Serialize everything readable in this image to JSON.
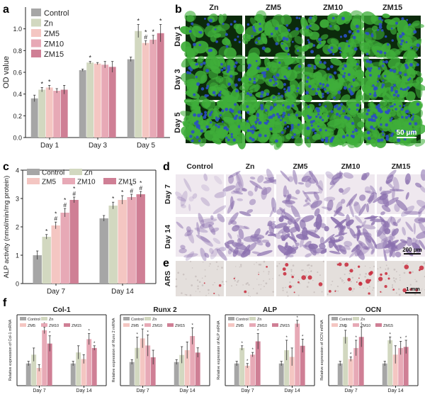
{
  "colors": {
    "Control": "#a6a6a6",
    "Zn": "#d2d8c0",
    "ZM5": "#f4c6c2",
    "ZM10": "#e7a9b6",
    "ZM15": "#cf7f95",
    "err": "#333333",
    "fluor_bg": "#0b2a0b",
    "fluor_cell": "#3fae3a",
    "nucleus": "#2a4fc4",
    "stain_bg": "#efe8ef",
    "stain_cell": "#8a6fae",
    "ars_bg": "#e4dfdc",
    "ars_spot": "#c8283a"
  },
  "panels": {
    "a": "a",
    "b": "b",
    "c": "c",
    "d": "d",
    "e": "e",
    "f": "f"
  },
  "panel_b": {
    "cols": [
      "Zn",
      "ZM5",
      "ZM10",
      "ZM15"
    ],
    "rows": [
      "Day 1",
      "Day 3",
      "Day 5"
    ],
    "scale": "50 μm"
  },
  "panel_d": {
    "cols": [
      "Control",
      "Zn",
      "ZM5",
      "ZM10",
      "ZM15"
    ],
    "rows": [
      "Day 7",
      "Day 14"
    ],
    "scale": "200 μm"
  },
  "panel_e": {
    "row": "ARS",
    "scale": "1 mm"
  },
  "chart_data": [
    {
      "id": "a",
      "type": "bar",
      "categories": [
        "Day 1",
        "Day 3",
        "Day 5"
      ],
      "ylabel": "OD value",
      "ylim": [
        0,
        1.2
      ],
      "yticks": [
        0.0,
        0.2,
        0.4,
        0.6,
        0.8,
        1.0
      ],
      "ytick_labels": [
        "0.0",
        "0.2",
        "0.4",
        "0.6",
        "0.8",
        "1.0"
      ],
      "legend": "top-left",
      "series": [
        {
          "name": "Control",
          "values": [
            0.36,
            0.62,
            0.72
          ],
          "err": [
            0.03,
            0.01,
            0.02
          ],
          "marks": [
            "",
            "",
            ""
          ]
        },
        {
          "name": "Zn",
          "values": [
            0.44,
            0.69,
            0.98
          ],
          "err": [
            0.02,
            0.01,
            0.06
          ],
          "marks": [
            "*",
            "*",
            "*"
          ]
        },
        {
          "name": "ZM5",
          "values": [
            0.46,
            0.68,
            0.87
          ],
          "err": [
            0.02,
            0.01,
            0.02
          ],
          "marks": [
            "*",
            "",
            "*\n#"
          ]
        },
        {
          "name": "ZM10",
          "values": [
            0.43,
            0.67,
            0.9
          ],
          "err": [
            0.02,
            0.03,
            0.04
          ],
          "marks": [
            "",
            "",
            "*"
          ]
        },
        {
          "name": "ZM15",
          "values": [
            0.44,
            0.65,
            0.96
          ],
          "err": [
            0.04,
            0.05,
            0.08
          ],
          "marks": [
            "",
            "",
            "*"
          ]
        }
      ]
    },
    {
      "id": "c",
      "type": "bar",
      "categories": [
        "Day 7",
        "Day 14"
      ],
      "ylabel": "ALP activity (nmol/min/mg protein)",
      "ylim": [
        0,
        4
      ],
      "yticks": [
        0,
        1,
        2,
        3,
        4
      ],
      "ytick_labels": [
        "0",
        "1",
        "2",
        "3",
        "4"
      ],
      "legend": "top",
      "series": [
        {
          "name": "Control",
          "values": [
            1.0,
            2.3
          ],
          "err": [
            0.15,
            0.1
          ],
          "marks": [
            "",
            ""
          ]
        },
        {
          "name": "Zn",
          "values": [
            1.65,
            2.75
          ],
          "err": [
            0.08,
            0.12
          ],
          "marks": [
            "*",
            "*"
          ]
        },
        {
          "name": "ZM5",
          "values": [
            2.05,
            2.95
          ],
          "err": [
            0.12,
            0.15
          ],
          "marks": [
            "*\n#",
            "*"
          ]
        },
        {
          "name": "ZM10",
          "values": [
            2.5,
            3.05
          ],
          "err": [
            0.15,
            0.1
          ],
          "marks": [
            "*\n#",
            "*\n#"
          ]
        },
        {
          "name": "ZM15",
          "values": [
            2.95,
            3.15
          ],
          "err": [
            0.1,
            0.1
          ],
          "marks": [
            "*\n#",
            "*\n#"
          ]
        }
      ]
    },
    {
      "id": "f1",
      "type": "bar",
      "title": "Col-1",
      "categories": [
        "Day 7",
        "Day 14"
      ],
      "ylabel": "Relative expression of Col-1 mRNA",
      "ylim": [
        0,
        3.2
      ],
      "series": [
        {
          "name": "Control",
          "values": [
            1.0,
            1.0
          ],
          "err": [
            0.1,
            0.1
          ],
          "marks": [
            "",
            ""
          ]
        },
        {
          "name": "Zn",
          "values": [
            1.4,
            1.5
          ],
          "err": [
            0.3,
            0.3
          ],
          "marks": [
            "",
            ""
          ]
        },
        {
          "name": "ZM5",
          "values": [
            0.8,
            1.2
          ],
          "err": [
            0.15,
            0.2
          ],
          "marks": [
            "",
            ""
          ]
        },
        {
          "name": "ZM10",
          "values": [
            2.5,
            2.1
          ],
          "err": [
            0.15,
            0.25
          ],
          "marks": [
            "*",
            "*"
          ]
        },
        {
          "name": "ZM15",
          "values": [
            1.9,
            1.7
          ],
          "err": [
            0.35,
            0.1
          ],
          "marks": [
            "*",
            "*"
          ]
        }
      ]
    },
    {
      "id": "f2",
      "type": "bar",
      "title": "Runx 2",
      "categories": [
        "Day 7",
        "Day 14"
      ],
      "ylabel": "Relative expression of Runx 2 mRNA",
      "ylim": [
        0,
        3.0
      ],
      "series": [
        {
          "name": "Control",
          "values": [
            1.0,
            1.0
          ],
          "err": [
            0.1,
            0.1
          ],
          "marks": [
            "",
            ""
          ]
        },
        {
          "name": "Zn",
          "values": [
            1.6,
            1.3
          ],
          "err": [
            0.45,
            0.35
          ],
          "marks": [
            "*",
            ""
          ]
        },
        {
          "name": "ZM5",
          "values": [
            2.0,
            1.5
          ],
          "err": [
            0.4,
            0.35
          ],
          "marks": [
            "*",
            ""
          ]
        },
        {
          "name": "ZM10",
          "values": [
            1.7,
            2.1
          ],
          "err": [
            0.45,
            0.35
          ],
          "marks": [
            "*",
            "*"
          ]
        },
        {
          "name": "ZM15",
          "values": [
            1.2,
            1.4
          ],
          "err": [
            0.3,
            0.2
          ],
          "marks": [
            "",
            ""
          ]
        }
      ]
    },
    {
      "id": "f3",
      "type": "bar",
      "title": "ALP",
      "categories": [
        "Day 7",
        "Day 14"
      ],
      "ylabel": "Relative expression of ALP mRNA",
      "ylim": [
        0,
        3.2
      ],
      "series": [
        {
          "name": "Control",
          "values": [
            1.0,
            1.0
          ],
          "err": [
            0.1,
            0.1
          ],
          "marks": [
            "",
            ""
          ]
        },
        {
          "name": "Zn",
          "values": [
            1.7,
            1.6
          ],
          "err": [
            0.1,
            0.45
          ],
          "marks": [
            "*",
            "*"
          ]
        },
        {
          "name": "ZM5",
          "values": [
            0.9,
            1.3
          ],
          "err": [
            0.1,
            0.4
          ],
          "marks": [
            "*",
            ""
          ]
        },
        {
          "name": "ZM10",
          "values": [
            1.4,
            2.8
          ],
          "err": [
            0.1,
            0.15
          ],
          "marks": [
            "*",
            "*"
          ]
        },
        {
          "name": "ZM15",
          "values": [
            2.0,
            1.8
          ],
          "err": [
            0.35,
            0.3
          ],
          "marks": [
            "*",
            "*"
          ]
        }
      ]
    },
    {
      "id": "f4",
      "type": "bar",
      "title": "OCN",
      "categories": [
        "Day 7",
        "Day 14"
      ],
      "ylabel": "Relative expression of OCN mRNA",
      "ylim": [
        0,
        3.2
      ],
      "series": [
        {
          "name": "Control",
          "values": [
            1.0,
            1.0
          ],
          "err": [
            0.1,
            0.1
          ],
          "marks": [
            "",
            ""
          ]
        },
        {
          "name": "Zn",
          "values": [
            2.2,
            2.05
          ],
          "err": [
            0.3,
            0.15
          ],
          "marks": [
            "*",
            "*"
          ]
        },
        {
          "name": "ZM5",
          "values": [
            1.2,
            1.4
          ],
          "err": [
            0.1,
            0.4
          ],
          "marks": [
            "*",
            ""
          ]
        },
        {
          "name": "ZM10",
          "values": [
            1.7,
            1.7
          ],
          "err": [
            0.35,
            0.3
          ],
          "marks": [
            "*",
            "*"
          ]
        },
        {
          "name": "ZM15",
          "values": [
            2.2,
            1.75
          ],
          "err": [
            0.45,
            0.3
          ],
          "marks": [
            "*",
            "*"
          ]
        }
      ]
    }
  ]
}
